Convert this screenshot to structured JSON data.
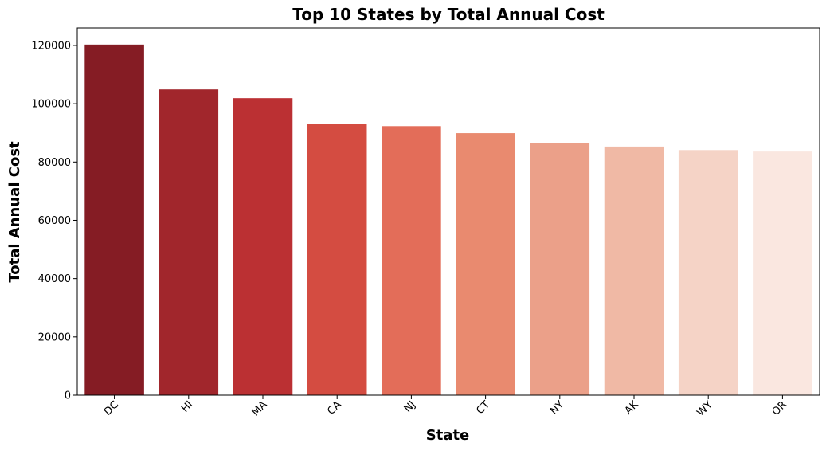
{
  "chart_data": {
    "type": "bar",
    "title": "Top 10 States by Total Annual Cost",
    "xlabel": "State",
    "ylabel": "Total Annual Cost",
    "categories": [
      "DC",
      "HI",
      "MA",
      "CA",
      "NJ",
      "CT",
      "NY",
      "AK",
      "WY",
      "OR"
    ],
    "values": [
      120300,
      104900,
      101900,
      93200,
      92300,
      89900,
      86600,
      85300,
      84100,
      83600
    ],
    "ylim": [
      0,
      126000
    ],
    "yticks": [
      0,
      20000,
      40000,
      60000,
      80000,
      100000,
      120000
    ],
    "ytick_labels": [
      "0",
      "20000",
      "40000",
      "60000",
      "80000",
      "100000",
      "120000"
    ],
    "grid": false,
    "legend": "none",
    "colors": [
      "#851c24",
      "#a1262c",
      "#bb3033",
      "#d44c41",
      "#e36d59",
      "#e98a6f",
      "#eba089",
      "#f0b9a5",
      "#f5d3c6",
      "#fae7e0"
    ]
  }
}
